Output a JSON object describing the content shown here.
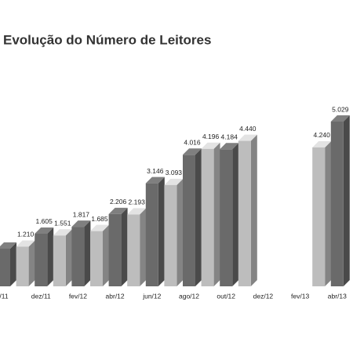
{
  "chart_data": {
    "type": "bar3d",
    "title": "Evolução do Número de Leitores",
    "categories": [
      "/11",
      null,
      "dez/11",
      null,
      "fev/12",
      null,
      "abr/12",
      null,
      "jun/12",
      null,
      "ago/12",
      null,
      "out/12",
      null,
      "dez/12",
      null,
      "fev/13",
      null,
      "abr/13"
    ],
    "values": [
      1150,
      1210,
      1605,
      1551,
      1817,
      1685,
      2206,
      2193,
      3146,
      3093,
      4016,
      4196,
      4184,
      4440,
      null,
      null,
      null,
      4240,
      5029
    ],
    "value_labels": [
      null,
      "1.210",
      "1.605",
      "1.551",
      "1.817",
      "1.685",
      "2.206",
      "2.193",
      "3.146",
      "3.093",
      "4.016",
      "4.196",
      "4.184",
      "4.440",
      null,
      null,
      null,
      "4.240",
      "5.029"
    ],
    "colors": [
      "#6a6a6a",
      "#bdbdbd"
    ]
  }
}
